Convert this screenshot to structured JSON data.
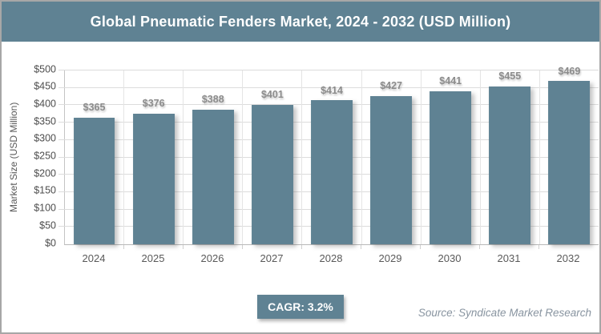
{
  "title_bar": {
    "title": "Global Pneumatic Fenders Market, 2024 - 2032 (USD Million)"
  },
  "chart_data": {
    "type": "bar",
    "title": "Global Pneumatic Fenders Market, 2024 - 2032 (USD Million)",
    "categories": [
      "2024",
      "2025",
      "2026",
      "2027",
      "2028",
      "2029",
      "2030",
      "2031",
      "2032"
    ],
    "values": [
      365,
      376,
      388,
      401,
      414,
      427,
      441,
      455,
      469
    ],
    "bar_labels": [
      "$365",
      "$376",
      "$388",
      "$401",
      "$414",
      "$427",
      "$441",
      "$455",
      "$469"
    ],
    "xlabel": "",
    "ylabel": "Market Size (USD Million)",
    "ylim": [
      0,
      500
    ],
    "ytick_step": 50,
    "ytick_labels": [
      "$0",
      "$50",
      "$100",
      "$150",
      "$200",
      "$250",
      "$300",
      "$350",
      "$400",
      "$450",
      "$500"
    ],
    "grid": true,
    "legend": "none",
    "bar_color": "#5F8293"
  },
  "footer": {
    "cagr_label": "CAGR: 3.2%",
    "source": "Source: Syndicate Market Research"
  },
  "colors": {
    "accent": "#5F8293",
    "frame_border": "#A7A7A7",
    "gridline": "#DCDCDC",
    "data_label": "#8C8C8C",
    "axis_text": "#595959"
  }
}
